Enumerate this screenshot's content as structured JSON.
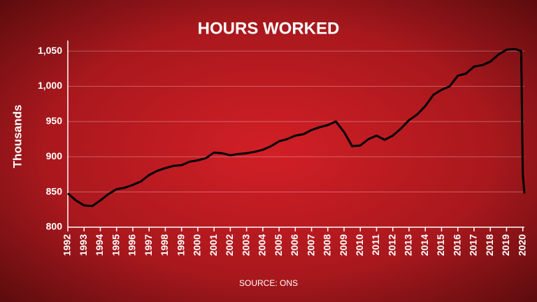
{
  "chart_data": {
    "type": "line",
    "title": "HOURS WORKED",
    "y_label": "Thousands",
    "source": "SOURCE: ONS",
    "x": [
      1992,
      1992.5,
      1993,
      1993.5,
      1994,
      1994.5,
      1995,
      1995.5,
      1996,
      1996.5,
      1997,
      1997.5,
      1998,
      1998.5,
      1999,
      1999.5,
      2000,
      2000.5,
      2001,
      2001.5,
      2002,
      2002.5,
      2003,
      2003.5,
      2004,
      2004.5,
      2005,
      2005.5,
      2006,
      2006.5,
      2007,
      2007.5,
      2008,
      2008.5,
      2009,
      2009.5,
      2010,
      2010.5,
      2011,
      2011.5,
      2012,
      2012.5,
      2013,
      2013.5,
      2014,
      2014.5,
      2015,
      2015.5,
      2016,
      2016.5,
      2017,
      2017.5,
      2018,
      2018.5,
      2019,
      2019.5,
      2019.9,
      2020,
      2020.1
    ],
    "series": [
      {
        "name": "Hours worked",
        "color": "#000000",
        "values": [
          848,
          838,
          831,
          830,
          838,
          847,
          854,
          856,
          860,
          865,
          874,
          880,
          884,
          887,
          888,
          893,
          895,
          898,
          906,
          905,
          902,
          904,
          905,
          907,
          910,
          915,
          922,
          925,
          930,
          932,
          938,
          942,
          945,
          950,
          935,
          915,
          916,
          925,
          930,
          924,
          930,
          940,
          952,
          960,
          972,
          988,
          995,
          1000,
          1015,
          1018,
          1028,
          1030,
          1035,
          1045,
          1052,
          1053,
          1050,
          875,
          848
        ]
      }
    ],
    "xlim": [
      1992,
      2020.1
    ],
    "xticks": [
      1992,
      1993,
      1994,
      1995,
      1996,
      1997,
      1998,
      1999,
      2000,
      2001,
      2002,
      2003,
      2004,
      2005,
      2006,
      2007,
      2008,
      2009,
      2010,
      2011,
      2012,
      2013,
      2014,
      2015,
      2016,
      2017,
      2018,
      2019,
      2020
    ],
    "ylim": [
      800,
      1060
    ],
    "yticks": [
      800,
      850,
      900,
      950,
      {
        "value": 1000,
        "label": "1,000"
      },
      {
        "value": 1050,
        "label": "1,050"
      }
    ],
    "grid": true
  }
}
